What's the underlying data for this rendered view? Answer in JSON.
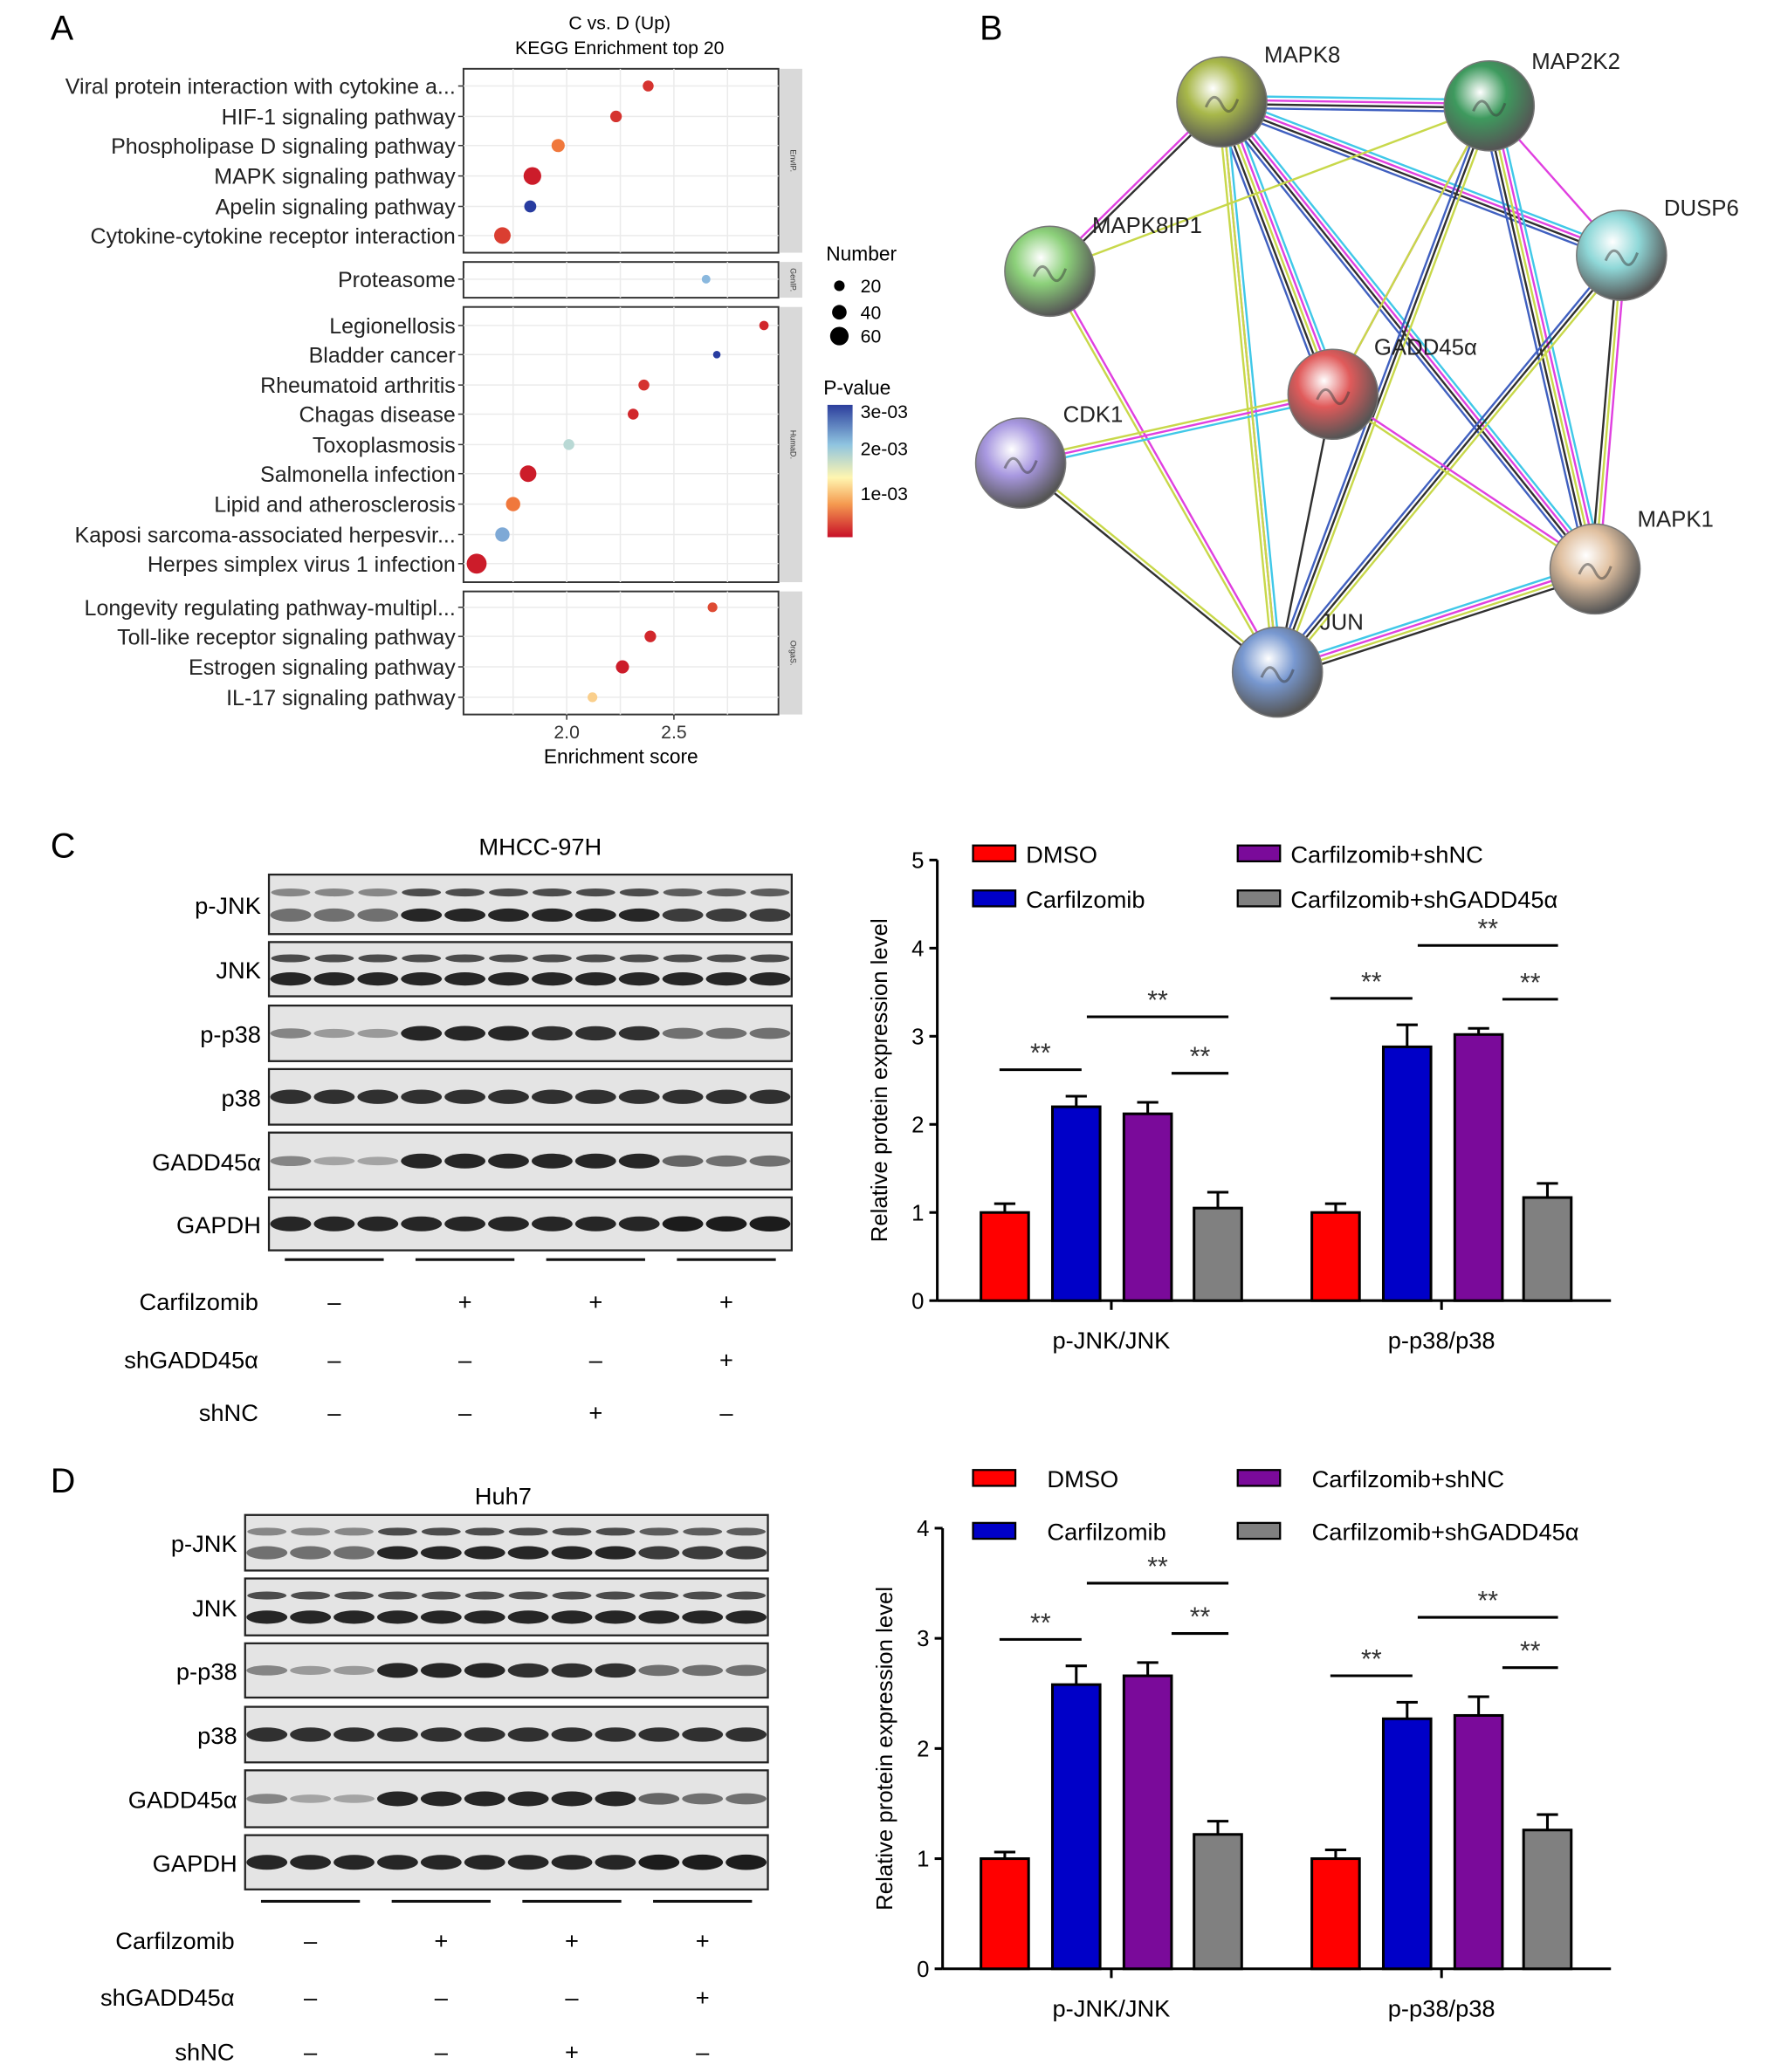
{
  "panels": {
    "a": "A",
    "b": "B",
    "c": "C",
    "d": "D"
  },
  "chart_data": [
    {
      "type": "scatter",
      "title": "C vs. D (Up)",
      "subtitle": "KEGG Enrichment top 20",
      "xlabel": "Enrichment score",
      "xticks": [
        "2.0",
        "2.5"
      ],
      "xlim": [
        1.52,
        2.98
      ],
      "facets": [
        {
          "strip": "EnvIP.",
          "terms": [
            {
              "label": "Viral protein interaction with cytokine a...",
              "x": 2.38,
              "number": 25,
              "pvalue": 0.0003
            },
            {
              "label": "HIF-1 signaling pathway",
              "x": 2.23,
              "number": 28,
              "pvalue": 0.0003
            },
            {
              "label": "Phospholipase D signaling pathway",
              "x": 1.96,
              "number": 35,
              "pvalue": 0.0009
            },
            {
              "label": "MAPK signaling pathway",
              "x": 1.84,
              "number": 55,
              "pvalue": 0.0001
            },
            {
              "label": "Apelin signaling pathway",
              "x": 1.83,
              "number": 30,
              "pvalue": 0.003
            },
            {
              "label": "Cytokine-cytokine receptor interaction",
              "x": 1.7,
              "number": 50,
              "pvalue": 0.0004
            }
          ]
        },
        {
          "strip": "GenIP.",
          "terms": [
            {
              "label": "Proteasome",
              "x": 2.65,
              "number": 15,
              "pvalue": 0.0022
            }
          ]
        },
        {
          "strip": "HumaD.",
          "terms": [
            {
              "label": "Legionellosis",
              "x": 2.92,
              "number": 18,
              "pvalue": 0.0002
            },
            {
              "label": "Bladder cancer",
              "x": 2.7,
              "number": 10,
              "pvalue": 0.003
            },
            {
              "label": "Rheumatoid arthritis",
              "x": 2.36,
              "number": 25,
              "pvalue": 0.0003
            },
            {
              "label": "Chagas disease",
              "x": 2.31,
              "number": 25,
              "pvalue": 0.0002
            },
            {
              "label": "Toxoplasmosis",
              "x": 2.01,
              "number": 25,
              "pvalue": 0.0019
            },
            {
              "label": "Salmonella infection",
              "x": 1.82,
              "number": 50,
              "pvalue": 0.0001
            },
            {
              "label": "Lipid and atherosclerosis",
              "x": 1.75,
              "number": 40,
              "pvalue": 0.0009
            },
            {
              "label": "Kaposi sarcoma-associated herpesvir...",
              "x": 1.7,
              "number": 40,
              "pvalue": 0.0023
            },
            {
              "label": "Herpes simplex virus 1 infection",
              "x": 1.58,
              "number": 65,
              "pvalue": 0.0001
            }
          ]
        },
        {
          "strip": "OrgaS.",
          "terms": [
            {
              "label": "Longevity regulating pathway-multipl...",
              "x": 2.68,
              "number": 20,
              "pvalue": 0.0005
            },
            {
              "label": "Toll-like receptor signaling pathway",
              "x": 2.39,
              "number": 28,
              "pvalue": 0.0002
            },
            {
              "label": "Estrogen signaling pathway",
              "x": 2.26,
              "number": 35,
              "pvalue": 0.0001
            },
            {
              "label": "IL-17 signaling pathway",
              "x": 2.12,
              "number": 20,
              "pvalue": 0.0013
            }
          ]
        }
      ],
      "legend_size": {
        "title": "Number",
        "entries": [
          "20",
          "40",
          "60"
        ]
      },
      "legend_color": {
        "title": "P-value",
        "entries": [
          "3e-03",
          "2e-03",
          "1e-03"
        ]
      }
    },
    {
      "type": "bar",
      "panel": "C",
      "ylabel": "Relative protein expression level",
      "ylim": [
        0,
        5
      ],
      "yticks": [
        "0",
        "1",
        "2",
        "3",
        "4",
        "5"
      ],
      "categories": [
        "p-JNK/JNK",
        "p-p38/p38"
      ],
      "series": [
        {
          "name": "DMSO",
          "color": "#ff0000",
          "values": [
            1.0,
            1.0
          ],
          "errors": [
            0.1,
            0.1
          ]
        },
        {
          "name": "Carfilzomib",
          "color": "#0000c8",
          "values": [
            2.2,
            2.88
          ],
          "errors": [
            0.12,
            0.25
          ]
        },
        {
          "name": "Carfilzomib+shNC",
          "color": "#7a0a9a",
          "values": [
            2.12,
            3.02
          ],
          "errors": [
            0.13,
            0.07
          ]
        },
        {
          "name": "Carfilzomib+shGADD45α",
          "color": "#808080",
          "values": [
            1.05,
            1.17
          ],
          "errors": [
            0.18,
            0.16
          ]
        }
      ],
      "significance": "**"
    },
    {
      "type": "bar",
      "panel": "D",
      "ylabel": "Relative protein expression level",
      "ylim": [
        0,
        4
      ],
      "yticks": [
        "0",
        "1",
        "2",
        "3",
        "4"
      ],
      "categories": [
        "p-JNK/JNK",
        "p-p38/p38"
      ],
      "series": [
        {
          "name": "DMSO",
          "color": "#ff0000",
          "values": [
            1.0,
            1.0
          ],
          "errors": [
            0.06,
            0.08
          ]
        },
        {
          "name": "Carfilzomib",
          "color": "#0000c8",
          "values": [
            2.58,
            2.27
          ],
          "errors": [
            0.17,
            0.15
          ]
        },
        {
          "name": "Carfilzomib+shNC",
          "color": "#7a0a9a",
          "values": [
            2.66,
            2.3
          ],
          "errors": [
            0.12,
            0.17
          ]
        },
        {
          "name": "Carfilzomib+shGADD45α",
          "color": "#808080",
          "values": [
            1.22,
            1.26
          ],
          "errors": [
            0.12,
            0.14
          ]
        }
      ],
      "significance": "**"
    }
  ],
  "network": {
    "nodes": [
      {
        "label": "MAPK8",
        "color": "#a8b84a"
      },
      {
        "label": "MAP2K2",
        "color": "#3e9a5e"
      },
      {
        "label": "DUSP6",
        "color": "#8fd8d8"
      },
      {
        "label": "MAPK8IP1",
        "color": "#8cd07a"
      },
      {
        "label": "GADD45α",
        "color": "#e05a5a"
      },
      {
        "label": "CDK1",
        "color": "#a898e0"
      },
      {
        "label": "MAPK1",
        "color": "#e0c0a0"
      },
      {
        "label": "JUN",
        "color": "#7898d0"
      }
    ],
    "edge_colors": [
      "#40c8e8",
      "#e040e0",
      "#c8d84a",
      "#303030",
      "#4060c0"
    ]
  },
  "blots": [
    {
      "title": "MHCC-97H",
      "rows": [
        "p-JNK",
        "JNK",
        "p-p38",
        "p38",
        "GADD45α",
        "GAPDH"
      ]
    },
    {
      "title": "Huh7",
      "rows": [
        "p-JNK",
        "JNK",
        "p-p38",
        "p38",
        "GADD45α",
        "GAPDH"
      ]
    }
  ],
  "treatments": [
    {
      "label": "Carfilzomib",
      "signs": [
        "–",
        "+",
        "+",
        "+"
      ]
    },
    {
      "label": "shGADD45α",
      "signs": [
        "–",
        "–",
        "–",
        "+"
      ]
    },
    {
      "label": "shNC",
      "signs": [
        "–",
        "–",
        "+",
        "–"
      ]
    }
  ]
}
